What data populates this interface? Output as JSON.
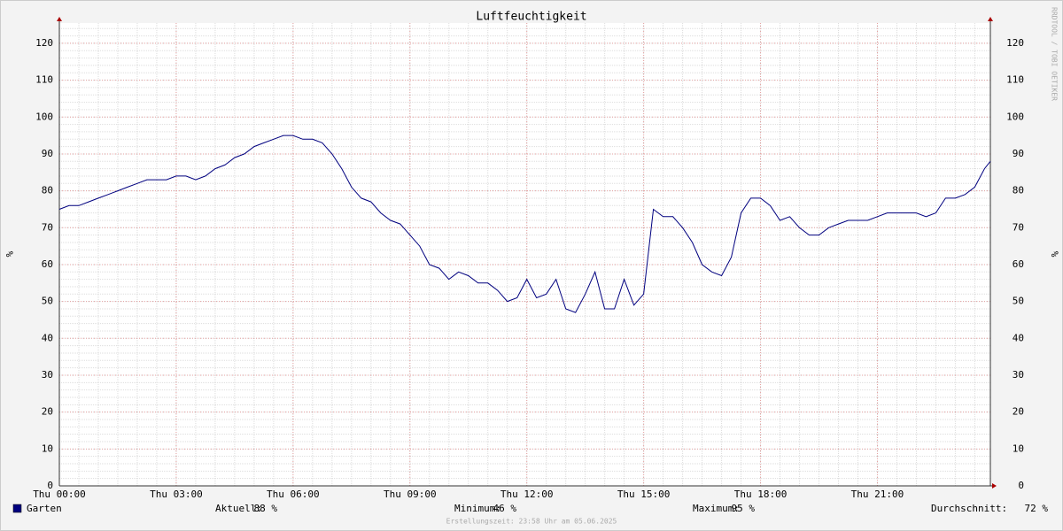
{
  "chart_data": {
    "type": "line",
    "title": "Luftfeuchtigkeit",
    "y_label": "%",
    "watermark": "RRDTOOL / TOBI OETIKER",
    "footer": "Erstellungszeit: 23:58 Uhr am 05.06.2025",
    "x": [
      0,
      0.25,
      0.5,
      0.75,
      1,
      1.25,
      1.5,
      1.75,
      2,
      2.25,
      2.5,
      2.75,
      3,
      3.25,
      3.5,
      3.75,
      4,
      4.25,
      4.5,
      4.75,
      5,
      5.25,
      5.5,
      5.75,
      6,
      6.25,
      6.5,
      6.75,
      7,
      7.25,
      7.5,
      7.75,
      8,
      8.25,
      8.5,
      8.75,
      9,
      9.25,
      9.5,
      9.75,
      10,
      10.25,
      10.5,
      10.75,
      11,
      11.25,
      11.5,
      11.75,
      12,
      12.25,
      12.5,
      12.75,
      13,
      13.25,
      13.5,
      13.75,
      14,
      14.25,
      14.5,
      14.75,
      15,
      15.25,
      15.5,
      15.75,
      16,
      16.25,
      16.5,
      16.75,
      17,
      17.25,
      17.5,
      17.75,
      18,
      18.25,
      18.5,
      18.75,
      19,
      19.25,
      19.5,
      19.75,
      20,
      20.25,
      20.5,
      20.75,
      21,
      21.25,
      21.5,
      21.75,
      22,
      22.25,
      22.5,
      22.75,
      23,
      23.25,
      23.5,
      23.75,
      23.9
    ],
    "series": [
      {
        "name": "Garten",
        "color": "#00007f",
        "values": [
          75,
          76,
          76,
          77,
          78,
          79,
          80,
          81,
          82,
          83,
          83,
          83,
          84,
          84,
          83,
          84,
          86,
          87,
          89,
          90,
          92,
          93,
          94,
          95,
          95,
          94,
          94,
          93,
          90,
          86,
          81,
          78,
          77,
          74,
          72,
          71,
          68,
          65,
          60,
          59,
          56,
          58,
          57,
          55,
          55,
          53,
          50,
          51,
          56,
          51,
          52,
          56,
          48,
          47,
          52,
          58,
          48,
          48,
          56,
          49,
          52,
          75,
          73,
          73,
          70,
          66,
          60,
          58,
          57,
          62,
          74,
          78,
          78,
          76,
          72,
          73,
          70,
          68,
          68,
          70,
          71,
          72,
          72,
          72,
          73,
          74,
          74,
          74,
          74,
          73,
          74,
          78,
          78,
          79,
          81,
          86,
          88
        ]
      }
    ],
    "xlim": [
      0,
      23.9
    ],
    "xticks": [
      {
        "value": 0,
        "label": "Thu 00:00"
      },
      {
        "value": 3,
        "label": "Thu 03:00"
      },
      {
        "value": 6,
        "label": "Thu 06:00"
      },
      {
        "value": 9,
        "label": "Thu 09:00"
      },
      {
        "value": 12,
        "label": "Thu 12:00"
      },
      {
        "value": 15,
        "label": "Thu 15:00"
      },
      {
        "value": 18,
        "label": "Thu 18:00"
      },
      {
        "value": 21,
        "label": "Thu 21:00"
      }
    ],
    "ylim": [
      0,
      125.5
    ],
    "yticks": [
      0,
      10,
      20,
      30,
      40,
      50,
      60,
      70,
      80,
      90,
      100,
      110,
      120
    ],
    "grid": true,
    "stats": [
      {
        "label": "Aktuell:",
        "value": "88 %"
      },
      {
        "label": "Minimum:",
        "value": "46 %"
      },
      {
        "label": "Maximum:",
        "value": "95 %"
      },
      {
        "label": "Durchschnitt:",
        "value": "72 %"
      }
    ]
  }
}
